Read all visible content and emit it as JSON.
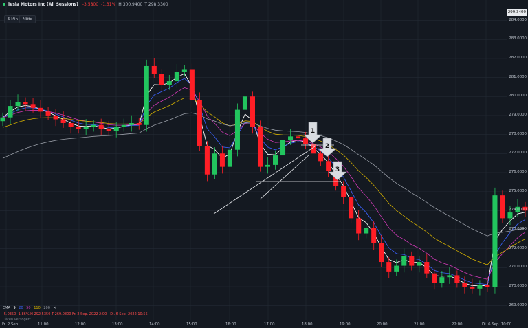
{
  "header": {
    "title": "Tesla Motors Inc (All Sessions)",
    "change": "-3.5800",
    "change_pct": "-1.31%",
    "high": "H 300.9400",
    "low": "T 298.3300"
  },
  "toolbar": {
    "interval": "5 Min",
    "mode": "Mitte"
  },
  "last_price": "299.3400",
  "y_labels": [
    "284.0000",
    "283.0000",
    "282.0000",
    "281.0000",
    "280.0000",
    "279.0000",
    "278.0000",
    "277.0000",
    "276.0000",
    "275.0000",
    "274.0000",
    "273.0000",
    "272.0000",
    "271.0000",
    "270.0000",
    "269.0000"
  ],
  "x_labels": [
    "Fr. 2 Sep.",
    "11:00",
    "12:00",
    "13:00",
    "14:00",
    "15:00",
    "16:00",
    "17:00",
    "18:00",
    "19:00",
    "20:00",
    "21:00",
    "22:00",
    "Di. 6 Sep. 10:00"
  ],
  "ema_legend": {
    "label": "EMA",
    "values": [
      "9",
      "20",
      "50",
      "110",
      "200"
    ],
    "colors": [
      "#ffffff",
      "#3b63ff",
      "#d43ab8",
      "#d4b000",
      "#9a9fa8"
    ]
  },
  "footer": {
    "line1": "-5.0350   -1.86%   H 292.5350   T 269.0800   Fr. 2 Sep. 2022 2:00 - Di. 6 Sep. 2022 10:55",
    "line2": "Daten verzögert"
  },
  "annotations": [
    "1",
    "2",
    "3"
  ],
  "colors": {
    "up": "#22c55e",
    "down": "#ff1e26",
    "background": "#141921"
  },
  "chart_data": {
    "type": "candlestick",
    "ylim": [
      268.7,
      284.2
    ],
    "price_axis": "right",
    "indicators": [
      "EMA 9",
      "EMA 20",
      "EMA 50",
      "EMA 110",
      "EMA 200"
    ],
    "approx_closes": [
      278.9,
      279.5,
      279.7,
      279.6,
      279.4,
      279.2,
      279.0,
      278.8,
      278.6,
      278.4,
      278.3,
      278.4,
      278.5,
      278.3,
      278.2,
      278.4,
      278.5,
      278.6,
      278.5,
      281.6,
      281.2,
      280.6,
      280.8,
      281.3,
      281.4,
      279.8,
      277.4,
      275.9,
      277.0,
      276.3,
      277.2,
      279.3,
      280.0,
      278.4,
      276.3,
      276.4,
      276.9,
      277.7,
      277.9,
      277.8,
      277.5,
      277.0,
      276.6,
      276.1,
      275.3,
      274.7,
      273.6,
      272.8,
      273.1,
      272.3,
      271.3,
      270.8,
      271.1,
      271.6,
      271.1,
      271.3,
      270.7,
      270.2,
      270.5,
      270.6,
      270.2,
      270.0,
      269.9,
      270.1,
      270.0,
      274.8,
      273.6,
      273.9,
      274.2,
      274.0
    ]
  }
}
